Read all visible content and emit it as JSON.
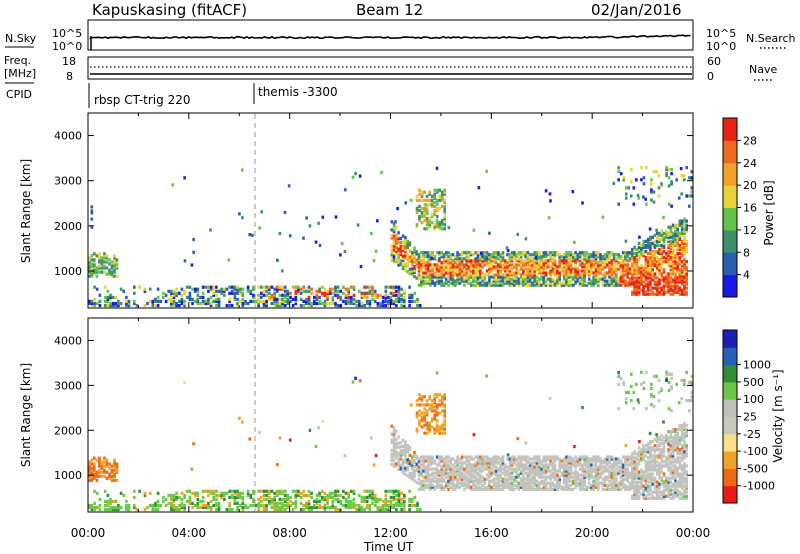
{
  "header": {
    "station": "Kapuskasing (fitACF)",
    "beam": "Beam 12",
    "date": "02/Jan/2016"
  },
  "colors": {
    "power_scale": [
      "#1a1ae6",
      "#2a5fb0",
      "#3f8f6a",
      "#66c24a",
      "#e8d23a",
      "#f2a02a",
      "#ee6a1e",
      "#e82414"
    ],
    "velocity_scale": [
      "#e81a1a",
      "#ee6a14",
      "#f0a326",
      "#fadf8a",
      "#c8c8c0",
      "#c0c0bb",
      "#6cc64a",
      "#2e8e36",
      "#2860b4",
      "#1f1fb8"
    ],
    "ground_scatter": "#c3c3bf"
  },
  "nsky_panel": {
    "left_label": "N.Sky",
    "right_label": "N.Search",
    "left_ticks": [
      "10^5",
      "10^0"
    ],
    "right_ticks": [
      "10^5",
      "10^0"
    ]
  },
  "freq_panel": {
    "left_label_line1": "Freq.",
    "left_label_line2": "[MHz]",
    "right_label": "Nave",
    "left_ticks": [
      "18",
      "8"
    ],
    "right_ticks": [
      "60",
      "0"
    ]
  },
  "cpid": {
    "label": "CPID",
    "segments": [
      {
        "start_hour": 0.0,
        "text": "rbsp CT-trig 220"
      },
      {
        "start_hour": 6.5,
        "text": "themis -3300"
      }
    ]
  },
  "chart_data": [
    {
      "type": "heatmap",
      "title": "",
      "xlabel": "",
      "ylabel": "Slant Range [km]",
      "xlim": [
        0,
        24
      ],
      "ylim": [
        180,
        4500
      ],
      "y_ticks": [
        "1000",
        "2000",
        "3000",
        "4000"
      ],
      "x_tick_labels": [
        "00:00",
        "04:00",
        "08:00",
        "12:00",
        "16:00",
        "20:00",
        "00:00"
      ],
      "colorbar": {
        "label": "Power [dB]",
        "range": [
          0,
          32
        ],
        "ticks": [
          "4",
          "8",
          "12",
          "16",
          "20",
          "24",
          "28"
        ]
      },
      "series": [
        {
          "hours": [
            0.0,
            1.2
          ],
          "range_km": [
            850,
            1350
          ],
          "value_db": "8-16"
        },
        {
          "hours": [
            0.0,
            0.3
          ],
          "range_km": [
            1800,
            2450
          ],
          "value_db": "4-8"
        },
        {
          "hours": [
            0.0,
            13.0
          ],
          "range_km": [
            200,
            650
          ],
          "value_db": "4-24"
        },
        {
          "hours": [
            12.0,
            23.6
          ],
          "range_km": [
            400,
            2100
          ],
          "value_db": "4-28"
        },
        {
          "hours": [
            13.0,
            14.0
          ],
          "range_km": [
            1900,
            2800
          ],
          "value_db": "4-20"
        },
        {
          "hours": [
            21.0,
            24.0
          ],
          "range_km": [
            2400,
            3300
          ],
          "value_db": "4-16"
        }
      ],
      "reference_line_hour": 6.5
    },
    {
      "type": "heatmap",
      "title": "",
      "xlabel": "Time UT",
      "ylabel": "Slant Range [km]",
      "xlim": [
        0,
        24
      ],
      "ylim": [
        180,
        4500
      ],
      "y_ticks": [
        "1000",
        "2000",
        "3000",
        "4000"
      ],
      "x_tick_labels": [
        "00:00",
        "04:00",
        "08:00",
        "12:00",
        "16:00",
        "20:00",
        "00:00"
      ],
      "colorbar": {
        "label": "Velocity [m s⁻¹]",
        "ticks": [
          "-1000",
          "-500",
          "-100",
          "-25",
          "25",
          "100",
          "500",
          "1000"
        ]
      },
      "series": [
        {
          "hours": [
            0.0,
            1.0
          ],
          "range_km": [
            850,
            1400
          ],
          "value_ms": "-500 to -100"
        },
        {
          "hours": [
            0.0,
            13.0
          ],
          "range_km": [
            200,
            650
          ],
          "value_ms": "25 to 500"
        },
        {
          "hours": [
            12.0,
            23.6
          ],
          "range_km": [
            500,
            2100
          ],
          "value_ms": "-25 to 25 (ground scatter)"
        },
        {
          "hours": [
            13.0,
            14.0
          ],
          "range_km": [
            1900,
            2800
          ],
          "value_ms": "-500 to -100"
        }
      ],
      "reference_line_hour": 6.5
    }
  ]
}
